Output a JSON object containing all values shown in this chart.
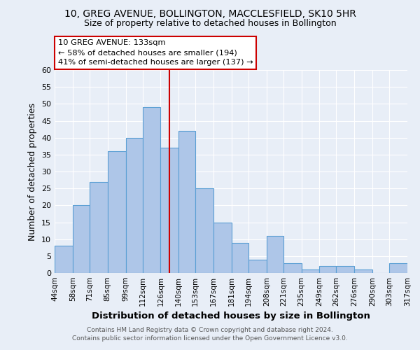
{
  "title": "10, GREG AVENUE, BOLLINGTON, MACCLESFIELD, SK10 5HR",
  "subtitle": "Size of property relative to detached houses in Bollington",
  "xlabel": "Distribution of detached houses by size in Bollington",
  "ylabel": "Number of detached properties",
  "bin_labels": [
    "44sqm",
    "58sqm",
    "71sqm",
    "85sqm",
    "99sqm",
    "112sqm",
    "126sqm",
    "140sqm",
    "153sqm",
    "167sqm",
    "181sqm",
    "194sqm",
    "208sqm",
    "221sqm",
    "235sqm",
    "249sqm",
    "262sqm",
    "276sqm",
    "290sqm",
    "303sqm",
    "317sqm"
  ],
  "bar_values": [
    8,
    20,
    27,
    36,
    40,
    49,
    37,
    42,
    25,
    15,
    9,
    4,
    11,
    3,
    1,
    2,
    2,
    1,
    0,
    3
  ],
  "bin_edges": [
    44,
    58,
    71,
    85,
    99,
    112,
    126,
    140,
    153,
    167,
    181,
    194,
    208,
    221,
    235,
    249,
    262,
    276,
    290,
    303,
    317
  ],
  "bar_color": "#aec6e8",
  "bar_edge_color": "#5a9fd4",
  "vline_x": 133,
  "vline_color": "#cc0000",
  "ylim": [
    0,
    60
  ],
  "yticks": [
    0,
    5,
    10,
    15,
    20,
    25,
    30,
    35,
    40,
    45,
    50,
    55,
    60
  ],
  "annotation_title": "10 GREG AVENUE: 133sqm",
  "annotation_line1": "← 58% of detached houses are smaller (194)",
  "annotation_line2": "41% of semi-detached houses are larger (137) →",
  "annotation_box_color": "#ffffff",
  "annotation_box_edge": "#cc0000",
  "background_color": "#e8eef7",
  "grid_color": "#ffffff",
  "footer_line1": "Contains HM Land Registry data © Crown copyright and database right 2024.",
  "footer_line2": "Contains public sector information licensed under the Open Government Licence v3.0."
}
